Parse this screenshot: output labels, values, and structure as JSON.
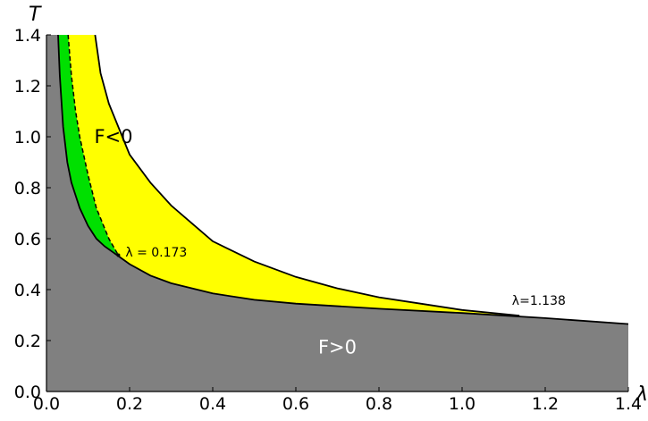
{
  "chart_data": {
    "type": "area",
    "xlabel": "λ",
    "ylabel": "T",
    "xlim": [
      0,
      1.4
    ],
    "ylim": [
      0,
      1.4
    ],
    "x_ticks": [
      "0.0",
      "0.2",
      "0.4",
      "0.6",
      "0.8",
      "1.0",
      "1.2",
      "1.4"
    ],
    "y_ticks": [
      "0.0",
      "0.2",
      "0.4",
      "0.6",
      "0.8",
      "1.0",
      "1.2",
      "1.4"
    ],
    "grid": false,
    "colors": {
      "positive_region": "#808080",
      "green_region": "#00e000",
      "yellow_region": "#ffff00",
      "boundary": "#000000"
    },
    "series": [
      {
        "role": "lower boundary (F=0)",
        "x": [
          0.028,
          0.032,
          0.04,
          0.05,
          0.06,
          0.08,
          0.1,
          0.12,
          0.14,
          0.17,
          0.2,
          0.25,
          0.3,
          0.4,
          0.5,
          0.6,
          0.8,
          1.0,
          1.2,
          1.4
        ],
        "y": [
          1.4,
          1.24,
          1.04,
          0.9,
          0.82,
          0.72,
          0.65,
          0.6,
          0.57,
          0.535,
          0.5,
          0.455,
          0.425,
          0.385,
          0.36,
          0.345,
          0.325,
          0.308,
          0.288,
          0.265
        ]
      },
      {
        "role": "dashed curve",
        "style": "dashed",
        "x": [
          0.052,
          0.06,
          0.07,
          0.08,
          0.1,
          0.12,
          0.15,
          0.173
        ],
        "y": [
          1.4,
          1.24,
          1.1,
          1.0,
          0.85,
          0.72,
          0.6,
          0.535
        ]
      },
      {
        "role": "upper boundary",
        "x": [
          0.117,
          0.13,
          0.15,
          0.2,
          0.25,
          0.3,
          0.4,
          0.5,
          0.6,
          0.7,
          0.8,
          0.9,
          1.0,
          1.138
        ],
        "y": [
          1.4,
          1.25,
          1.13,
          0.93,
          0.82,
          0.73,
          0.59,
          0.51,
          0.45,
          0.405,
          0.37,
          0.345,
          0.32,
          0.298
        ]
      }
    ],
    "annotations": [
      {
        "text": "F<0",
        "x": 0.115,
        "y": 0.975
      },
      {
        "text": "F>0",
        "x": 0.7,
        "y": 0.15
      },
      {
        "text": "λ = 0.173",
        "x": 0.19,
        "y": 0.53,
        "marker": {
          "x": 0.173,
          "y": 0.535
        }
      },
      {
        "text": "λ=1.138",
        "x": 1.12,
        "y": 0.34
      }
    ]
  }
}
